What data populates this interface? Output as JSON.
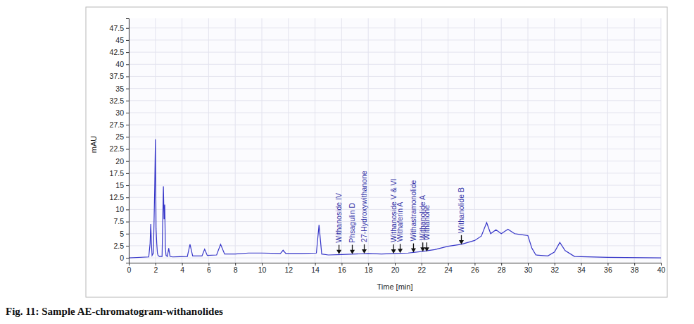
{
  "chart_data": {
    "type": "line",
    "caption": "Fig. 11: Sample AE-chromatogram-withanolides",
    "xlabel": "Time [min]",
    "ylabel": "mAU",
    "color": "#3535c8",
    "grid": true,
    "xlim": [
      0,
      40
    ],
    "ylim": [
      -1,
      49.5
    ],
    "xticks": [
      0,
      2,
      4,
      6,
      8,
      10,
      12,
      14,
      16,
      18,
      20,
      22,
      24,
      26,
      28,
      30,
      32,
      34,
      36,
      38,
      40
    ],
    "yticks": [
      0,
      2.5,
      5,
      7.5,
      10,
      12.5,
      15,
      17.5,
      20,
      22.5,
      25,
      27.5,
      30,
      32.5,
      35,
      37.5,
      40,
      42.5,
      45,
      47.5
    ],
    "x": [
      0,
      1.5,
      1.6,
      1.65,
      1.7,
      1.75,
      1.85,
      1.95,
      2.0,
      2.05,
      2.1,
      2.15,
      2.2,
      2.3,
      2.5,
      2.6,
      2.65,
      2.7,
      2.75,
      2.8,
      2.9,
      3.0,
      3.1,
      3.3,
      4.4,
      4.6,
      4.8,
      5.5,
      5.7,
      5.9,
      6.6,
      6.9,
      7.2,
      8,
      9,
      10,
      11.4,
      11.6,
      11.8,
      13,
      14.1,
      14.3,
      14.5,
      15,
      16,
      17,
      18,
      19,
      20,
      21,
      22,
      23,
      24,
      25,
      26,
      26.5,
      26.9,
      27.2,
      27.6,
      28,
      28.5,
      29,
      29.5,
      30,
      30.3,
      30.6,
      31.5,
      32,
      32.4,
      32.8,
      33.5,
      36,
      40
    ],
    "values": [
      0,
      0.2,
      3,
      7,
      3,
      0.5,
      1,
      14.8,
      24.5,
      6,
      3,
      1,
      0.5,
      0.3,
      0.3,
      14.8,
      8,
      11,
      2,
      0.5,
      0.3,
      2,
      0.3,
      0.2,
      0.3,
      2.8,
      0.4,
      0.4,
      1.8,
      0.5,
      0.6,
      2.8,
      0.8,
      0.8,
      1,
      1,
      0.9,
      1.6,
      0.9,
      0.9,
      1,
      6.8,
      0.8,
      0.6,
      0.7,
      0.8,
      0.9,
      0.8,
      0.9,
      1.0,
      1.3,
      1.7,
      2.4,
      2.8,
      3.6,
      4.5,
      7.3,
      5,
      5.8,
      5,
      5.9,
      5,
      4.8,
      4.6,
      2,
      0.6,
      0.4,
      1.2,
      3.2,
      1.5,
      0.3,
      0.1,
      0
    ],
    "annotations": [
      {
        "x": 15.8,
        "y": 0.8,
        "label": "Withanoside IV"
      },
      {
        "x": 16.8,
        "y": 0.8,
        "label": "Phsagulin D"
      },
      {
        "x": 17.7,
        "y": 0.9,
        "label": "27-Hydroxywithanone"
      },
      {
        "x": 19.9,
        "y": 0.9,
        "label": "Withanoside V & VI"
      },
      {
        "x": 20.4,
        "y": 1.0,
        "label": "Withaferin A"
      },
      {
        "x": 21.4,
        "y": 1.1,
        "label": "Withastramonolide"
      },
      {
        "x": 22.1,
        "y": 1.3,
        "label": "Withanolide A"
      },
      {
        "x": 22.4,
        "y": 1.3,
        "label": "Withanone"
      },
      {
        "x": 25.0,
        "y": 2.8,
        "label": "Withanolide B"
      }
    ]
  }
}
